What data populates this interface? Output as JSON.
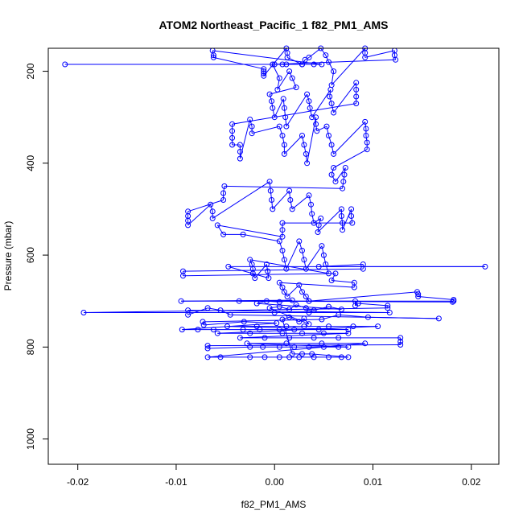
{
  "chart_data": {
    "type": "scatter",
    "title": "ATOM2 Northeast_Pacific_1 f82_PM1_AMS",
    "xlabel": "f82_PM1_AMS",
    "ylabel": "Pressure (mbar)",
    "xlim": [
      -0.023,
      0.0228
    ],
    "ylim": [
      1055,
      150
    ],
    "y_reversed": true,
    "xticks": [
      -0.02,
      -0.01,
      0.0,
      0.01,
      0.02
    ],
    "xtick_labels": [
      "-0.02",
      "-0.01",
      "0.00",
      "0.01",
      "0.02"
    ],
    "yticks": [
      200,
      400,
      600,
      800,
      1000
    ],
    "ytick_labels": [
      "200",
      "400",
      "600",
      "800",
      "1000"
    ],
    "grid": false,
    "marker": "open-circle",
    "connected": true,
    "color": "#0000ff",
    "series": [
      {
        "points": [
          [
            -0.0213,
            185
          ],
          [
            0.0,
            185
          ],
          [
            0.0008,
            185
          ],
          [
            0.0012,
            185
          ],
          [
            0.0028,
            185
          ],
          [
            0.004,
            185
          ],
          [
            0.0048,
            185
          ],
          [
            -0.0063,
            155
          ],
          [
            -0.0062,
            165
          ],
          [
            -0.0062,
            170
          ],
          [
            -0.0011,
            195
          ],
          [
            -0.0011,
            200
          ],
          [
            -0.0011,
            205
          ],
          [
            -0.0011,
            210
          ],
          [
            0.0012,
            150
          ],
          [
            0.0013,
            160
          ],
          [
            0.0013,
            170
          ],
          [
            0.0028,
            185
          ],
          [
            0.0031,
            175
          ],
          [
            0.0035,
            170
          ],
          [
            0.0047,
            150
          ],
          [
            0.0052,
            165
          ],
          [
            0.0055,
            180
          ],
          [
            0.006,
            200
          ],
          [
            0.0058,
            230
          ],
          [
            0.0092,
            150
          ],
          [
            0.0092,
            160
          ],
          [
            0.0092,
            170
          ],
          [
            0.0122,
            155
          ],
          [
            0.0122,
            165
          ],
          [
            0.0123,
            175
          ],
          [
            -0.0002,
            185
          ],
          [
            0.0005,
            215
          ],
          [
            0.0003,
            240
          ],
          [
            0.0015,
            200
          ],
          [
            0.0018,
            215
          ],
          [
            0.0022,
            235
          ],
          [
            -0.0005,
            250
          ],
          [
            -0.0003,
            265
          ],
          [
            -0.0002,
            280
          ],
          [
            0.0,
            300
          ],
          [
            0.0009,
            260
          ],
          [
            0.001,
            280
          ],
          [
            0.0011,
            300
          ],
          [
            0.0012,
            320
          ],
          [
            0.0033,
            250
          ],
          [
            0.0035,
            265
          ],
          [
            0.0036,
            280
          ],
          [
            0.0038,
            300
          ],
          [
            0.0057,
            240
          ],
          [
            0.0056,
            255
          ],
          [
            0.0058,
            270
          ],
          [
            0.006,
            290
          ],
          [
            0.0083,
            225
          ],
          [
            0.0083,
            240
          ],
          [
            0.0083,
            255
          ],
          [
            0.0083,
            270
          ],
          [
            -0.0043,
            315
          ],
          [
            -0.0043,
            330
          ],
          [
            -0.0043,
            345
          ],
          [
            -0.0043,
            360
          ],
          [
            -0.0035,
            360
          ],
          [
            -0.0035,
            375
          ],
          [
            -0.0035,
            390
          ],
          [
            -0.0025,
            305
          ],
          [
            -0.0023,
            320
          ],
          [
            -0.0023,
            335
          ],
          [
            0.0005,
            320
          ],
          [
            0.0008,
            340
          ],
          [
            0.001,
            360
          ],
          [
            0.001,
            380
          ],
          [
            0.0028,
            340
          ],
          [
            0.003,
            360
          ],
          [
            0.0032,
            380
          ],
          [
            0.0033,
            400
          ],
          [
            0.0042,
            300
          ],
          [
            0.0042,
            315
          ],
          [
            0.0043,
            330
          ],
          [
            0.0053,
            320
          ],
          [
            0.0055,
            340
          ],
          [
            0.0058,
            360
          ],
          [
            0.006,
            380
          ],
          [
            0.0092,
            310
          ],
          [
            0.0093,
            325
          ],
          [
            0.0093,
            340
          ],
          [
            0.0094,
            355
          ],
          [
            0.0094,
            370
          ],
          [
            0.006,
            410
          ],
          [
            0.0058,
            425
          ],
          [
            0.0062,
            440
          ],
          [
            0.0072,
            410
          ],
          [
            0.0071,
            425
          ],
          [
            0.007,
            440
          ],
          [
            0.0069,
            455
          ],
          [
            -0.0051,
            450
          ],
          [
            -0.0052,
            465
          ],
          [
            -0.0052,
            480
          ],
          [
            -0.0088,
            505
          ],
          [
            -0.0088,
            515
          ],
          [
            -0.0088,
            525
          ],
          [
            -0.0088,
            535
          ],
          [
            -0.0065,
            490
          ],
          [
            -0.0063,
            505
          ],
          [
            -0.0063,
            520
          ],
          [
            -0.0005,
            440
          ],
          [
            -0.0004,
            460
          ],
          [
            -0.0003,
            480
          ],
          [
            -0.0002,
            500
          ],
          [
            0.0015,
            460
          ],
          [
            0.0016,
            480
          ],
          [
            0.0018,
            500
          ],
          [
            0.0035,
            470
          ],
          [
            0.0037,
            490
          ],
          [
            0.0038,
            510
          ],
          [
            0.004,
            530
          ],
          [
            0.0047,
            520
          ],
          [
            0.0045,
            535
          ],
          [
            0.0044,
            550
          ],
          [
            0.0068,
            500
          ],
          [
            0.0068,
            515
          ],
          [
            0.0069,
            530
          ],
          [
            0.0069,
            545
          ],
          [
            0.0078,
            500
          ],
          [
            0.0078,
            515
          ],
          [
            0.0079,
            530
          ],
          [
            0.0008,
            530
          ],
          [
            0.0008,
            545
          ],
          [
            0.0008,
            560
          ],
          [
            -0.0058,
            535
          ],
          [
            -0.0052,
            555
          ],
          [
            -0.0032,
            555
          ],
          [
            0.0005,
            570
          ],
          [
            0.0008,
            590
          ],
          [
            0.001,
            610
          ],
          [
            0.0012,
            630
          ],
          [
            0.0025,
            570
          ],
          [
            0.0028,
            590
          ],
          [
            0.003,
            610
          ],
          [
            0.0032,
            630
          ],
          [
            0.0048,
            580
          ],
          [
            0.005,
            600
          ],
          [
            0.0052,
            620
          ],
          [
            0.0055,
            640
          ],
          [
            -0.0025,
            610
          ],
          [
            -0.0023,
            620
          ],
          [
            -0.0022,
            630
          ],
          [
            -0.0022,
            640
          ],
          [
            -0.002,
            650
          ],
          [
            -0.0008,
            620
          ],
          [
            -0.0007,
            635
          ],
          [
            -0.0006,
            650
          ],
          [
            -0.0047,
            625
          ],
          [
            0.0214,
            625
          ],
          [
            0.0045,
            625
          ],
          [
            0.009,
            620
          ],
          [
            0.009,
            630
          ],
          [
            -0.0093,
            635
          ],
          [
            -0.0093,
            645
          ],
          [
            0.0062,
            640
          ],
          [
            0.0058,
            655
          ],
          [
            0.0081,
            660
          ],
          [
            0.0081,
            670
          ],
          [
            0.0005,
            660
          ],
          [
            0.0008,
            670
          ],
          [
            0.001,
            680
          ],
          [
            0.0013,
            690
          ],
          [
            0.0025,
            665
          ],
          [
            0.0028,
            680
          ],
          [
            0.0032,
            690
          ],
          [
            0.0035,
            700
          ],
          [
            0.0145,
            680
          ],
          [
            0.0146,
            685
          ],
          [
            0.0146,
            690
          ],
          [
            0.0182,
            697
          ],
          [
            0.0181,
            702
          ],
          [
            -0.0036,
            700
          ],
          [
            0.0082,
            700
          ],
          [
            0.0082,
            710
          ],
          [
            0.0085,
            705
          ],
          [
            0.0115,
            710
          ],
          [
            0.0115,
            715
          ],
          [
            -0.0194,
            725
          ],
          [
            0.0,
            725
          ],
          [
            0.0035,
            725
          ],
          [
            0.0117,
            725
          ],
          [
            -0.0088,
            720
          ],
          [
            -0.0088,
            730
          ],
          [
            -0.0068,
            715
          ],
          [
            -0.0055,
            720
          ],
          [
            -0.0045,
            730
          ],
          [
            0.0167,
            738
          ],
          [
            0.0095,
            735
          ],
          [
            0.0065,
            730
          ],
          [
            0.0048,
            740
          ],
          [
            -0.0073,
            745
          ],
          [
            -0.0072,
            752
          ],
          [
            -0.0031,
            745
          ],
          [
            0.0002,
            748
          ],
          [
            -0.0094,
            762
          ],
          [
            -0.0078,
            762
          ],
          [
            -0.0062,
            762
          ],
          [
            -0.0032,
            762
          ],
          [
            -0.0015,
            762
          ],
          [
            0.0005,
            762
          ],
          [
            0.002,
            762
          ],
          [
            0.0045,
            762
          ],
          [
            0.0075,
            762
          ],
          [
            -0.0048,
            755
          ],
          [
            -0.0018,
            755
          ],
          [
            0.0012,
            755
          ],
          [
            0.003,
            755
          ],
          [
            0.0055,
            755
          ],
          [
            0.008,
            755
          ],
          [
            0.0105,
            755
          ],
          [
            -0.0058,
            770
          ],
          [
            -0.0025,
            770
          ],
          [
            0.0008,
            770
          ],
          [
            0.0028,
            770
          ],
          [
            0.005,
            770
          ],
          [
            0.0075,
            770
          ],
          [
            -0.0035,
            780
          ],
          [
            -0.001,
            780
          ],
          [
            0.0015,
            780
          ],
          [
            0.004,
            780
          ],
          [
            0.0065,
            780
          ],
          [
            0.0128,
            780
          ],
          [
            0.0128,
            788
          ],
          [
            0.0128,
            795
          ],
          [
            -0.0068,
            797
          ],
          [
            -0.0068,
            803
          ],
          [
            -0.0025,
            800
          ],
          [
            -0.0012,
            800
          ],
          [
            0.0005,
            800
          ],
          [
            0.002,
            800
          ],
          [
            0.0035,
            800
          ],
          [
            0.005,
            800
          ],
          [
            0.0065,
            800
          ],
          [
            0.0075,
            800
          ],
          [
            -0.0028,
            792
          ],
          [
            0.0012,
            792
          ],
          [
            0.0048,
            792
          ],
          [
            0.0092,
            792
          ],
          [
            -0.0068,
            822
          ],
          [
            -0.0055,
            822
          ],
          [
            -0.0025,
            822
          ],
          [
            -0.001,
            822
          ],
          [
            0.0005,
            822
          ],
          [
            0.0015,
            822
          ],
          [
            0.0025,
            822
          ],
          [
            0.004,
            822
          ],
          [
            0.0055,
            822
          ],
          [
            0.0068,
            822
          ],
          [
            0.0075,
            822
          ],
          [
            0.0038,
            815
          ],
          [
            0.0028,
            815
          ],
          [
            0.0018,
            815
          ],
          [
            0.0008,
            740
          ],
          [
            0.0015,
            735
          ],
          [
            0.0025,
            745
          ],
          [
            0.003,
            738
          ],
          [
            0.0035,
            750
          ],
          [
            -0.0005,
            715
          ],
          [
            0.0005,
            712
          ],
          [
            0.0015,
            718
          ],
          [
            0.0022,
            708
          ],
          [
            0.0032,
            715
          ],
          [
            0.004,
            720
          ],
          [
            0.0055,
            712
          ],
          [
            0.0068,
            718
          ],
          [
            -0.0018,
            705
          ],
          [
            -0.0008,
            700
          ],
          [
            0.0005,
            702
          ],
          [
            0.0018,
            698
          ],
          [
            -0.0095,
            700
          ],
          [
            0.0035,
            700
          ],
          [
            0.0182,
            700
          ]
        ]
      }
    ]
  }
}
